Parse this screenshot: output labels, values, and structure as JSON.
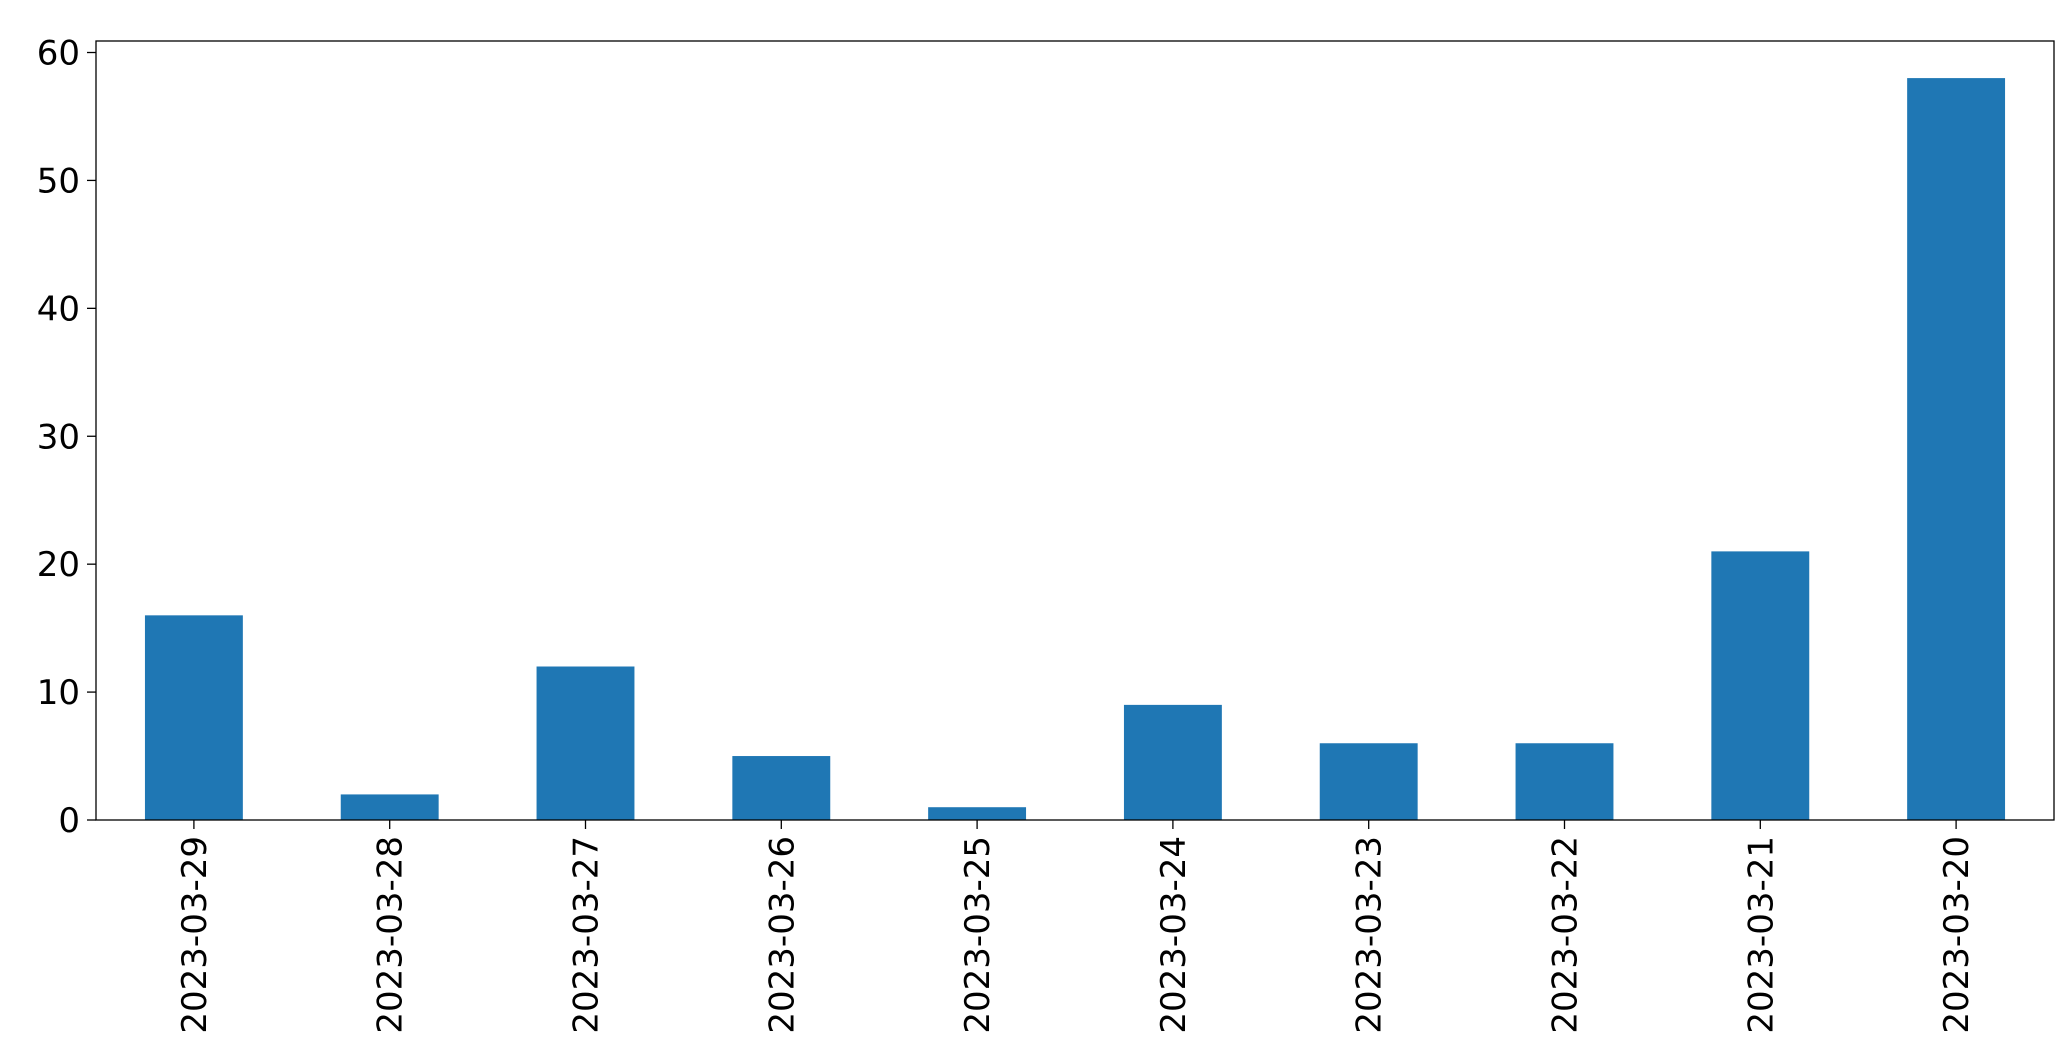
{
  "chart_data": {
    "type": "bar",
    "categories": [
      "2023-03-29",
      "2023-03-28",
      "2023-03-27",
      "2023-03-26",
      "2023-03-25",
      "2023-03-24",
      "2023-03-23",
      "2023-03-22",
      "2023-03-21",
      "2023-03-20"
    ],
    "values": [
      16,
      2,
      12,
      5,
      1,
      9,
      6,
      6,
      21,
      58
    ],
    "color": "#1f77b4",
    "ylim": [
      0,
      60.9
    ],
    "yticks": [
      0,
      10,
      20,
      30,
      40,
      50,
      60
    ],
    "grid": false
  }
}
